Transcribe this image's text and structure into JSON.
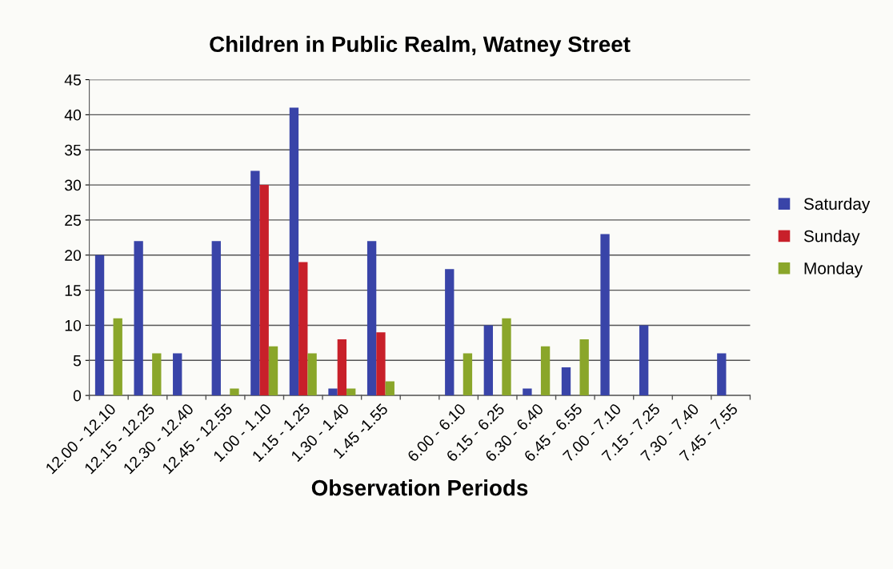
{
  "chart_data": {
    "type": "bar",
    "title": "Children in Public Realm, Watney Street",
    "xlabel": "Observation Periods",
    "categories": [
      "12.00 - 12.10",
      "12.15 - 12.25",
      "12.30 - 12.40",
      "12.45 - 12.55",
      "1.00 - 1.10",
      "1.15 - 1.25",
      "1.30 - 1.40",
      "1.45 -1.55",
      null,
      "6.00 - 6.10",
      "6.15 - 6.25",
      "6.30 - 6.40",
      "6.45 - 6.55",
      "7.00 - 7.10",
      "7.15 - 7.25",
      "7.30 - 7.40",
      "7.45 - 7.55"
    ],
    "series": [
      {
        "name": "Saturday",
        "color": "#3944a8",
        "values": [
          20,
          22,
          6,
          22,
          32,
          41,
          1,
          22,
          0,
          18,
          10,
          1,
          4,
          23,
          10,
          0,
          6
        ]
      },
      {
        "name": "Sunday",
        "color": "#c8202a",
        "values": [
          0,
          0,
          0,
          0,
          30,
          19,
          8,
          9,
          0,
          0,
          0,
          0,
          0,
          0,
          0,
          0,
          0
        ]
      },
      {
        "name": "Monday",
        "color": "#8aa62a",
        "values": [
          11,
          6,
          0,
          1,
          7,
          6,
          1,
          2,
          0,
          6,
          11,
          7,
          8,
          0,
          0,
          0,
          0
        ]
      }
    ],
    "ylim": [
      0,
      45
    ],
    "yticks": [
      0,
      5,
      10,
      15,
      20,
      25,
      30,
      35,
      40,
      45
    ],
    "grid": "y",
    "legend": "right"
  }
}
